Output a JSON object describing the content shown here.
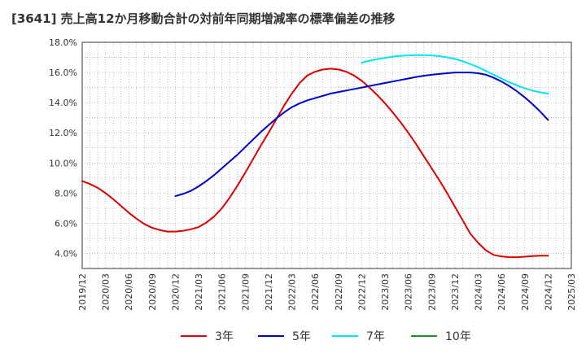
{
  "chart_data": {
    "type": "line",
    "title": "[3641]  売上高12か月移動合計の対前年同期増減率の標準偏差の推移",
    "xlabel": "",
    "ylabel": "",
    "x_ticks": [
      "2019/12",
      "2020/03",
      "2020/06",
      "2020/09",
      "2020/12",
      "2021/03",
      "2021/06",
      "2021/09",
      "2021/12",
      "2022/03",
      "2022/06",
      "2022/09",
      "2022/12",
      "2023/03",
      "2023/06",
      "2023/09",
      "2023/12",
      "2024/03",
      "2024/06",
      "2024/09",
      "2024/12",
      "2025/03"
    ],
    "y_ticks": [
      "4.0%",
      "6.0%",
      "8.0%",
      "10.0%",
      "12.0%",
      "14.0%",
      "16.0%",
      "18.0%"
    ],
    "ylim": [
      3.0,
      18.0
    ],
    "grid": true,
    "legend_position": "bottom",
    "series": [
      {
        "name": "3年",
        "color": "#dd0000",
        "x": [
          "2019/12",
          "2020/01",
          "2020/02",
          "2020/03",
          "2020/04",
          "2020/05",
          "2020/06",
          "2020/07",
          "2020/08",
          "2020/09",
          "2020/10",
          "2020/11",
          "2020/12",
          "2021/01",
          "2021/02",
          "2021/03",
          "2021/04",
          "2021/05",
          "2021/06",
          "2021/07",
          "2021/08",
          "2021/09",
          "2021/10",
          "2021/11",
          "2021/12",
          "2022/01",
          "2022/02",
          "2022/03",
          "2022/04",
          "2022/05",
          "2022/06",
          "2022/07",
          "2022/08",
          "2022/09",
          "2022/10",
          "2022/11",
          "2022/12",
          "2023/01",
          "2023/02",
          "2023/03",
          "2023/04",
          "2023/05",
          "2023/06",
          "2023/07",
          "2023/08",
          "2023/09",
          "2023/10",
          "2023/11",
          "2023/12",
          "2024/01",
          "2024/02",
          "2024/03",
          "2024/04",
          "2024/05",
          "2024/06",
          "2024/07",
          "2024/08",
          "2024/09",
          "2024/10",
          "2024/11",
          "2024/12"
        ],
        "values": [
          8.8,
          8.6,
          8.35,
          8.0,
          7.6,
          7.15,
          6.7,
          6.3,
          5.95,
          5.7,
          5.55,
          5.45,
          5.45,
          5.5,
          5.6,
          5.75,
          6.05,
          6.45,
          7.0,
          7.7,
          8.5,
          9.35,
          10.25,
          11.15,
          12.0,
          12.9,
          13.8,
          14.6,
          15.3,
          15.8,
          16.05,
          16.2,
          16.25,
          16.2,
          16.05,
          15.8,
          15.45,
          15.0,
          14.5,
          13.95,
          13.35,
          12.7,
          12.0,
          11.25,
          10.45,
          9.65,
          8.85,
          8.0,
          7.1,
          6.2,
          5.3,
          4.7,
          4.2,
          3.9,
          3.8,
          3.75,
          3.75,
          3.78,
          3.82,
          3.85,
          3.85
        ]
      },
      {
        "name": "5年",
        "color": "#0000cc",
        "x": [
          "2020/12",
          "2021/01",
          "2021/02",
          "2021/03",
          "2021/04",
          "2021/05",
          "2021/06",
          "2021/07",
          "2021/08",
          "2021/09",
          "2021/10",
          "2021/11",
          "2021/12",
          "2022/01",
          "2022/02",
          "2022/03",
          "2022/04",
          "2022/05",
          "2022/06",
          "2022/07",
          "2022/08",
          "2022/09",
          "2022/10",
          "2022/11",
          "2022/12",
          "2023/01",
          "2023/02",
          "2023/03",
          "2023/04",
          "2023/05",
          "2023/06",
          "2023/07",
          "2023/08",
          "2023/09",
          "2023/10",
          "2023/11",
          "2023/12",
          "2024/01",
          "2024/02",
          "2024/03",
          "2024/04",
          "2024/05",
          "2024/06",
          "2024/07",
          "2024/08",
          "2024/09",
          "2024/10",
          "2024/11",
          "2024/12"
        ],
        "values": [
          7.8,
          7.95,
          8.15,
          8.45,
          8.8,
          9.2,
          9.65,
          10.1,
          10.55,
          11.05,
          11.55,
          12.05,
          12.5,
          12.95,
          13.35,
          13.7,
          13.95,
          14.15,
          14.3,
          14.45,
          14.6,
          14.7,
          14.8,
          14.9,
          15.0,
          15.1,
          15.2,
          15.3,
          15.4,
          15.5,
          15.6,
          15.7,
          15.78,
          15.85,
          15.9,
          15.95,
          16.0,
          16.0,
          16.0,
          15.95,
          15.85,
          15.65,
          15.4,
          15.1,
          14.75,
          14.35,
          13.9,
          13.4,
          12.85
        ]
      },
      {
        "name": "7年",
        "color": "#00e5ee",
        "x": [
          "2022/12",
          "2023/01",
          "2023/02",
          "2023/03",
          "2023/04",
          "2023/05",
          "2023/06",
          "2023/07",
          "2023/08",
          "2023/09",
          "2023/10",
          "2023/11",
          "2023/12",
          "2024/01",
          "2024/02",
          "2024/03",
          "2024/04",
          "2024/05",
          "2024/06",
          "2024/07",
          "2024/08",
          "2024/09",
          "2024/10",
          "2024/11",
          "2024/12"
        ],
        "values": [
          16.65,
          16.78,
          16.88,
          16.97,
          17.05,
          17.1,
          17.13,
          17.15,
          17.15,
          17.13,
          17.08,
          17.0,
          16.9,
          16.75,
          16.55,
          16.35,
          16.1,
          15.85,
          15.6,
          15.35,
          15.15,
          14.95,
          14.8,
          14.68,
          14.6
        ]
      },
      {
        "name": "10年",
        "color": "#228b22",
        "x": [],
        "values": []
      }
    ]
  }
}
